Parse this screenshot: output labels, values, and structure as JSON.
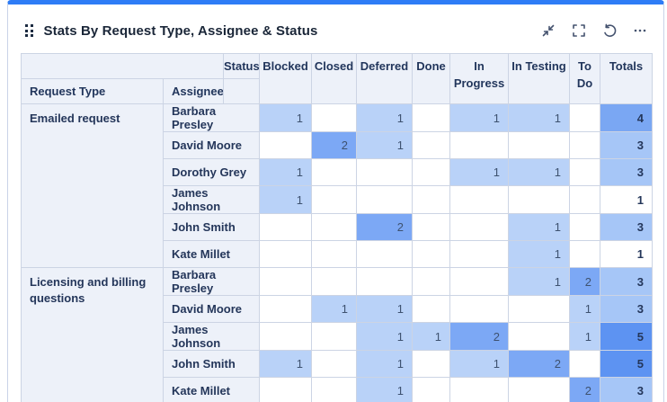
{
  "widget": {
    "title": "Stats By Request Type, Assignee & Status",
    "actions": {
      "collapse_label": "collapse",
      "expand_label": "expand",
      "refresh_label": "refresh",
      "more_label": "more options"
    }
  },
  "accent_color": "#2e7cf6",
  "table": {
    "status_label": "Status",
    "request_type_label": "Request Type",
    "assignee_label": "Assignee",
    "columns": [
      "Blocked",
      "Closed",
      "Deferred",
      "Done",
      "In Progress",
      "In Testing",
      "To Do",
      "Totals"
    ],
    "cell_colors": {
      "1": "#b9d2f8",
      "2": "#7ca8f5"
    },
    "total_colors": {
      "1": "#ffffff",
      "3": "#a6c6f7",
      "4": "#7aa7f3",
      "5": "#5d93f2"
    },
    "groups": [
      {
        "request_type": "Emailed request",
        "rows": [
          {
            "assignee": "Barbara Presley",
            "values": [
              "1",
              "",
              "1",
              "",
              "1",
              "1",
              ""
            ],
            "total": "4"
          },
          {
            "assignee": "David Moore",
            "values": [
              "",
              "2",
              "1",
              "",
              "",
              "",
              ""
            ],
            "total": "3"
          },
          {
            "assignee": "Dorothy Grey",
            "values": [
              "1",
              "",
              "",
              "",
              "1",
              "1",
              ""
            ],
            "total": "3"
          },
          {
            "assignee": "James Johnson",
            "values": [
              "1",
              "",
              "",
              "",
              "",
              "",
              ""
            ],
            "total": "1"
          },
          {
            "assignee": "John Smith",
            "values": [
              "",
              "",
              "2",
              "",
              "",
              "1",
              ""
            ],
            "total": "3"
          },
          {
            "assignee": "Kate Millet",
            "values": [
              "",
              "",
              "",
              "",
              "",
              "1",
              ""
            ],
            "total": "1"
          }
        ]
      },
      {
        "request_type": "Licensing and billing questions",
        "rows": [
          {
            "assignee": "Barbara Presley",
            "values": [
              "",
              "",
              "",
              "",
              "",
              "1",
              "2"
            ],
            "total": "3"
          },
          {
            "assignee": "David Moore",
            "values": [
              "",
              "1",
              "1",
              "",
              "",
              "",
              "1"
            ],
            "total": "3"
          },
          {
            "assignee": "James Johnson",
            "values": [
              "",
              "",
              "1",
              "1",
              "2",
              "",
              "1"
            ],
            "total": "5"
          },
          {
            "assignee": "John Smith",
            "values": [
              "1",
              "",
              "1",
              "",
              "1",
              "2",
              ""
            ],
            "total": "5"
          },
          {
            "assignee": "Kate Millet",
            "values": [
              "",
              "",
              "1",
              "",
              "",
              "",
              "2"
            ],
            "total": "3"
          }
        ]
      }
    ]
  }
}
